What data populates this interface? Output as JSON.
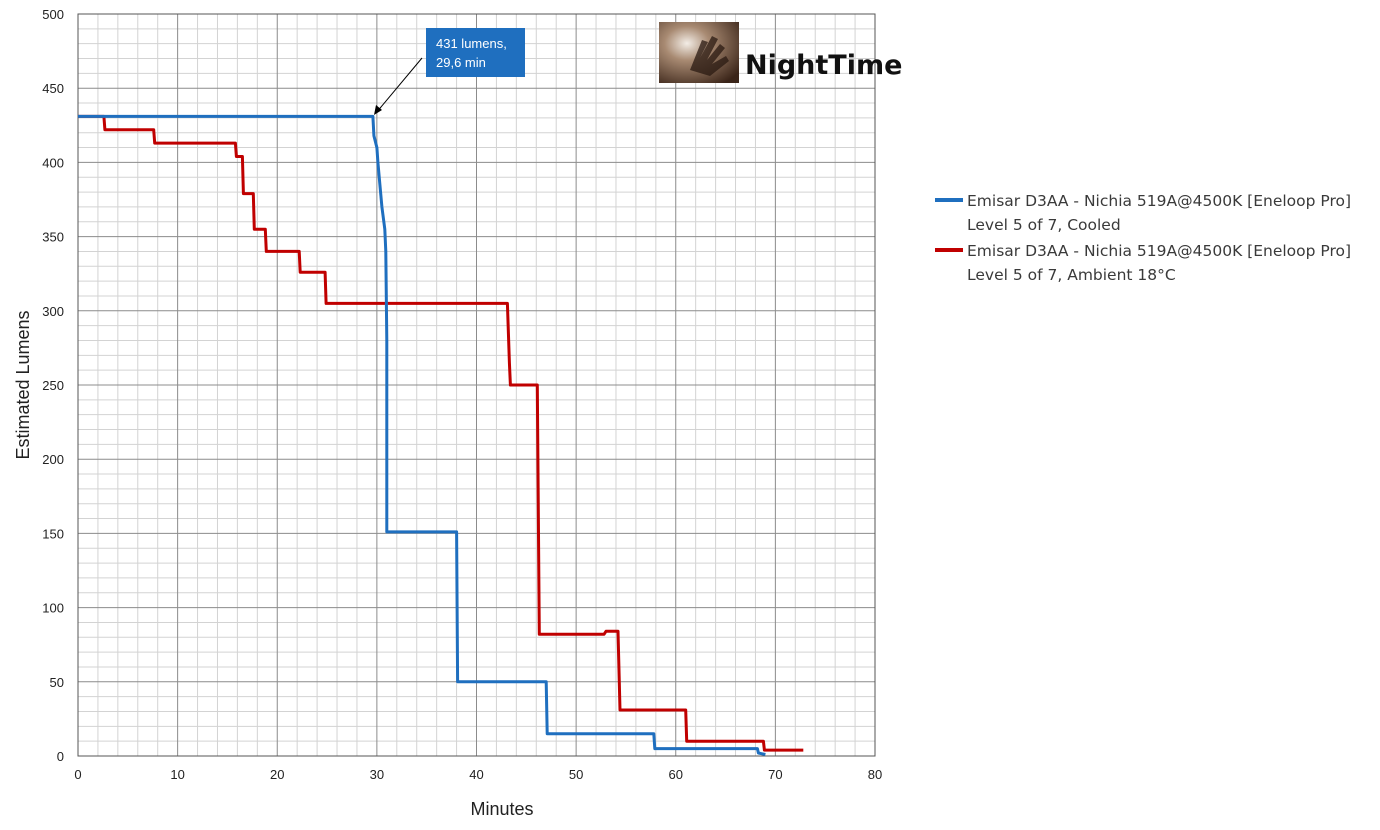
{
  "chart_data": {
    "type": "line",
    "xlabel": "Minutes",
    "ylabel": "Estimated Lumens",
    "xlim": [
      0,
      80
    ],
    "ylim": [
      0,
      500
    ],
    "x_ticks": [
      "0",
      "10",
      "20",
      "30",
      "40",
      "50",
      "60",
      "70",
      "80"
    ],
    "y_ticks": [
      "0",
      "50",
      "100",
      "150",
      "200",
      "250",
      "300",
      "350",
      "400",
      "450",
      "500"
    ],
    "grid": true,
    "minor_grid": true,
    "legend_position": "right",
    "series": [
      {
        "name": "Emisar D3AA - Nichia 519A@4500K [Eneloop Pro]",
        "name_line2": "Level 5 of 7, Cooled",
        "color": "#1f6fbf",
        "x": [
          0,
          29.6,
          29.7,
          30.0,
          30.1,
          30.3,
          30.5,
          30.8,
          30.9,
          31.0,
          31.0,
          38.0,
          38.1,
          47.0,
          47.1,
          57.8,
          57.9,
          68.2,
          68.3,
          69.0
        ],
        "y": [
          431,
          431,
          418,
          410,
          400,
          385,
          370,
          355,
          340,
          280,
          151,
          151,
          50,
          50,
          15,
          15,
          5,
          5,
          2,
          1
        ]
      },
      {
        "name": "Emisar D3AA - Nichia 519A@4500K [Eneloop Pro]",
        "name_line2": "Level 5 of 7, Ambient 18°C",
        "color": "#c00000",
        "x": [
          0,
          2.6,
          2.7,
          7.6,
          7.7,
          15.8,
          15.9,
          16.5,
          16.6,
          17.6,
          17.7,
          18.8,
          18.9,
          22.2,
          22.3,
          24.8,
          24.9,
          43.1,
          43.3,
          43.4,
          46.1,
          46.3,
          52.8,
          53.0,
          54.2,
          54.4,
          61.0,
          61.1,
          68.8,
          68.9,
          72.8
        ],
        "y": [
          431,
          431,
          422,
          422,
          413,
          413,
          404,
          404,
          379,
          379,
          355,
          355,
          340,
          340,
          326,
          326,
          305,
          305,
          265,
          250,
          250,
          82,
          82,
          84,
          84,
          31,
          31,
          10,
          10,
          4,
          4
        ]
      }
    ],
    "annotations": [
      {
        "text_line1": "431 lumens,",
        "text_line2": "29,6 min",
        "x": 29.6,
        "y": 431
      }
    ]
  },
  "logo": {
    "text": "NightTime"
  }
}
